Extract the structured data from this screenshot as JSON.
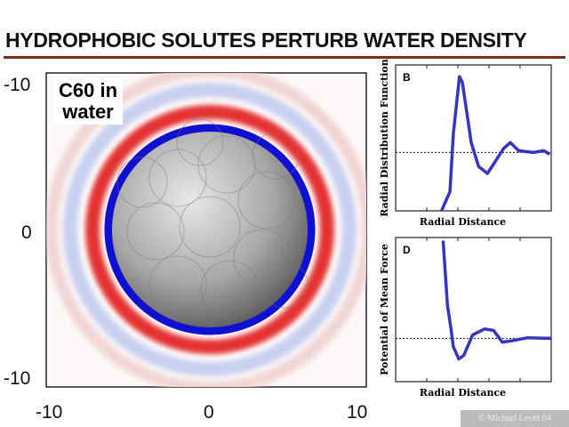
{
  "title": "HYDROPHOBIC SOLUTES PERTURB WATER DENSITY",
  "copyright": "© Michael Levitt 04",
  "main_panel": {
    "label": "C60 in water",
    "label_line1": "C60 in",
    "label_line2": "water",
    "y_ticks": [
      "-10",
      "0",
      "-10"
    ],
    "x_ticks": [
      "-10",
      "0",
      "10"
    ],
    "colors": {
      "positive": "#e02020",
      "negative": "#1010d0",
      "sphere": "#aaaaaa"
    }
  },
  "chart_data": [
    {
      "type": "line",
      "panel": "B",
      "ylabel": "Radial Distribution Function",
      "xlabel": "Radial Distance",
      "xlim": [
        0,
        10
      ],
      "ylim": [
        0,
        2.5
      ],
      "reference_line": 1,
      "color": "#3535c0",
      "x": [
        2.95,
        3.49,
        3.71,
        4.1,
        4.29,
        4.86,
        5.33,
        5.9,
        6.95,
        7.37,
        7.9,
        8.86,
        9.52,
        9.9
      ],
      "y": [
        0,
        0.33,
        1.32,
        2.3,
        2.2,
        1.17,
        0.76,
        0.64,
        1.07,
        1.17,
        1.03,
        1.0,
        1.03,
        0.97
      ]
    },
    {
      "type": "line",
      "panel": "D",
      "ylabel": "Potential of Mean Force",
      "xlabel": "Radial Distance",
      "xlim": [
        0,
        10
      ],
      "ylim": [
        -2.1,
        4.9
      ],
      "reference_line": 0,
      "color": "#3535c0",
      "x": [
        3.05,
        3.33,
        3.56,
        3.71,
        4.06,
        4.38,
        4.95,
        5.71,
        6.29,
        6.86,
        7.52,
        8.48,
        10
      ],
      "y": [
        4.75,
        1.6,
        0.46,
        -0.4,
        -1.0,
        -0.83,
        0.17,
        0.46,
        0.39,
        -0.18,
        -0.11,
        0.03,
        0
      ]
    }
  ]
}
